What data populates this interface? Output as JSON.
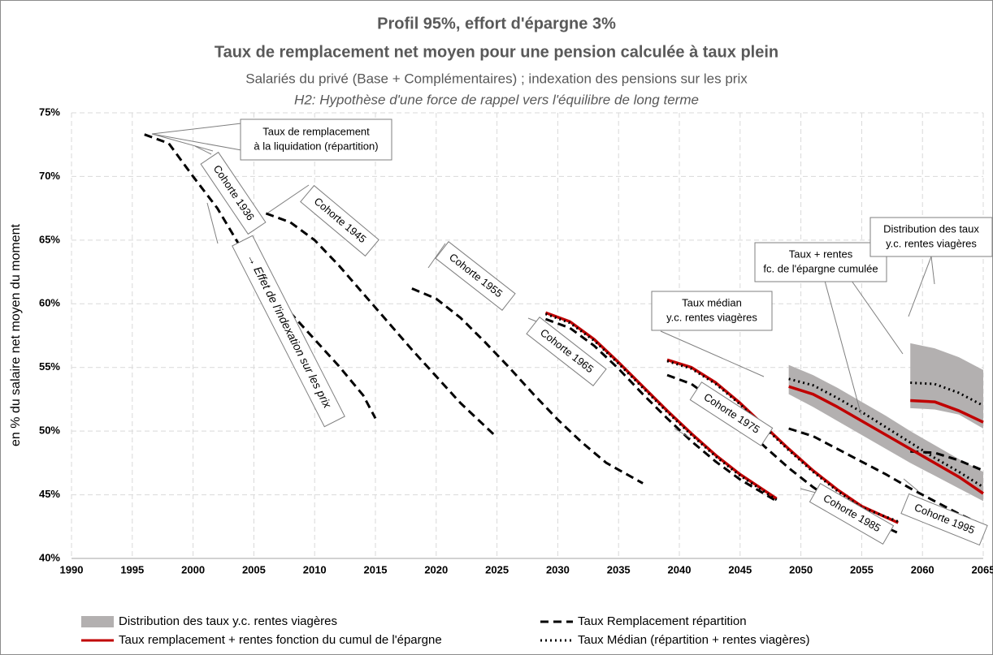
{
  "chart_data": {
    "type": "line",
    "title": "Profil 95%, effort d'épargne 3%",
    "subtitle": "Taux de remplacement net moyen pour une pension calculée à taux plein",
    "subtitle2": "Salariés du privé (Base + Complémentaires) ; indexation des pensions sur les prix",
    "note": "H2: Hypothèse d'une force de rappel vers l'équilibre de long terme",
    "y_label": "en % du salaire net moyen du moment",
    "xlim": [
      1990,
      2065
    ],
    "xticks": [
      1990,
      1995,
      2000,
      2005,
      2010,
      2015,
      2020,
      2025,
      2030,
      2035,
      2040,
      2045,
      2050,
      2055,
      2060,
      2065
    ],
    "ylim": [
      40,
      75
    ],
    "yticks": [
      {
        "value": 40,
        "label": "40%"
      },
      {
        "value": 45,
        "label": "45%"
      },
      {
        "value": 50,
        "label": "50%"
      },
      {
        "value": 55,
        "label": "55%"
      },
      {
        "value": 60,
        "label": "60%"
      },
      {
        "value": 65,
        "label": "65%"
      },
      {
        "value": 70,
        "label": "70%"
      },
      {
        "value": 75,
        "label": "75%"
      }
    ],
    "grid": true,
    "legend": "bottom",
    "series": [
      {
        "name": "Distribution des taux y.c. rentes viagères",
        "style": "band",
        "color": "#b3b0b0",
        "x": [
          2049,
          2051,
          2053,
          2055,
          2057,
          2059,
          2061,
          2063,
          2065,
          null,
          2059,
          2061,
          2063,
          2065
        ],
        "low": [
          52.9,
          51.9,
          50.8,
          49.7,
          48.6,
          47.5,
          46.5,
          45.5,
          44.5,
          null,
          51.8,
          51.7,
          51.3,
          50.2
        ],
        "high": [
          55.2,
          54.4,
          53.4,
          52.3,
          51.2,
          50.0,
          48.9,
          47.8,
          46.8,
          null,
          56.9,
          56.5,
          55.8,
          54.8
        ]
      },
      {
        "name": "Taux Remplacement répartition",
        "style": "dashed",
        "color": "#000000",
        "x": [
          1996,
          1998,
          2000,
          2002,
          2004,
          2006,
          2008,
          2010,
          2012,
          2014,
          2015,
          null,
          2006,
          2008,
          2010,
          2012,
          2014,
          2016,
          2018,
          2020,
          2022,
          2025,
          null,
          2018,
          2020,
          2022,
          2024,
          2026,
          2028,
          2030,
          2032,
          2034,
          2037,
          null,
          2029,
          2031,
          2033,
          2035,
          2037,
          2039,
          2041,
          2043,
          2045,
          2048,
          null,
          2039,
          2041,
          2043,
          2045,
          2047,
          2049,
          2051,
          2053,
          2055,
          2058,
          null,
          2049,
          2051,
          2053,
          2055,
          2057,
          2059,
          2061,
          2063,
          2065,
          null,
          2059,
          2061,
          2063,
          2065
        ],
        "values": [
          73.3,
          72.6,
          70.0,
          67.5,
          64.3,
          61.6,
          59.3,
          57.2,
          55.1,
          52.8,
          51.0,
          null,
          67.1,
          66.4,
          65.0,
          63.0,
          60.8,
          58.6,
          56.4,
          54.3,
          52.2,
          49.5,
          null,
          61.2,
          60.4,
          58.9,
          57.0,
          55.0,
          52.9,
          50.9,
          49.1,
          47.5,
          45.9,
          null,
          58.8,
          58.1,
          56.7,
          54.9,
          52.9,
          51.0,
          49.2,
          47.6,
          46.2,
          44.5,
          null,
          54.4,
          53.7,
          52.3,
          50.6,
          48.8,
          47.1,
          45.6,
          44.3,
          43.3,
          42.0,
          null,
          50.2,
          49.6,
          48.6,
          47.6,
          46.6,
          45.5,
          44.5,
          43.5,
          42.6,
          null,
          48.4,
          48.3,
          47.7,
          46.9
        ]
      },
      {
        "name": "Taux remplacement + rentes fonction du cumul de l'épargne",
        "style": "solid",
        "color": "#c00000",
        "x": [
          2029,
          2031,
          2033,
          2035,
          2037,
          2039,
          2041,
          2043,
          2045,
          2048,
          null,
          2039,
          2041,
          2043,
          2045,
          2047,
          2049,
          2051,
          2053,
          2055,
          2058,
          null,
          2049,
          2051,
          2053,
          2055,
          2057,
          2059,
          2061,
          2063,
          2065,
          null,
          2059,
          2061,
          2063,
          2065
        ],
        "values": [
          59.3,
          58.6,
          57.2,
          55.4,
          53.5,
          51.6,
          49.8,
          48.1,
          46.6,
          44.7,
          null,
          55.6,
          55.0,
          53.8,
          52.2,
          50.4,
          48.6,
          46.9,
          45.4,
          44.1,
          42.8,
          null,
          53.5,
          52.9,
          51.9,
          50.8,
          49.7,
          48.6,
          47.5,
          46.4,
          45.1,
          null,
          52.4,
          52.3,
          51.6,
          50.7
        ]
      },
      {
        "name": "Taux Médian (répartition + rentes viagères)",
        "style": "dotted",
        "color": "#000000",
        "x": [
          2029,
          2031,
          2033,
          2035,
          2037,
          2039,
          2041,
          2043,
          2045,
          2048,
          null,
          2039,
          2041,
          2043,
          2045,
          2047,
          2049,
          2051,
          2053,
          2055,
          2058,
          null,
          2049,
          2051,
          2053,
          2055,
          2057,
          2059,
          2061,
          2063,
          2065,
          null,
          2059,
          2061,
          2063,
          2065
        ],
        "values": [
          59.2,
          58.5,
          57.1,
          55.3,
          53.4,
          51.5,
          49.7,
          48.0,
          46.5,
          44.6,
          null,
          55.5,
          54.9,
          53.7,
          52.1,
          50.3,
          48.5,
          46.8,
          45.3,
          44.0,
          42.9,
          null,
          54.1,
          53.6,
          52.6,
          51.5,
          50.3,
          49.1,
          47.9,
          46.8,
          45.6,
          null,
          53.8,
          53.7,
          53.0,
          52.0
        ]
      }
    ],
    "annotations": [
      [
        "Taux de remplacement",
        "à la liquidation (répartition)"
      ],
      [
        "Cohorte 1936"
      ],
      [
        "Cohorte 1945"
      ],
      [
        "Cohorte 1955"
      ],
      [
        "Cohorte 1965"
      ],
      [
        "Cohorte 1975"
      ],
      [
        "Cohorte 1985"
      ],
      [
        "Cohorte 1995"
      ],
      [
        "→ Effet de l'indexation sur les prix"
      ],
      [
        "Taux médian",
        "y.c. rentes viagères"
      ],
      [
        "Taux + rentes",
        "fc. de l'épargne cumulée"
      ],
      [
        "Distribution des taux",
        "y.c. rentes viagères"
      ]
    ]
  }
}
